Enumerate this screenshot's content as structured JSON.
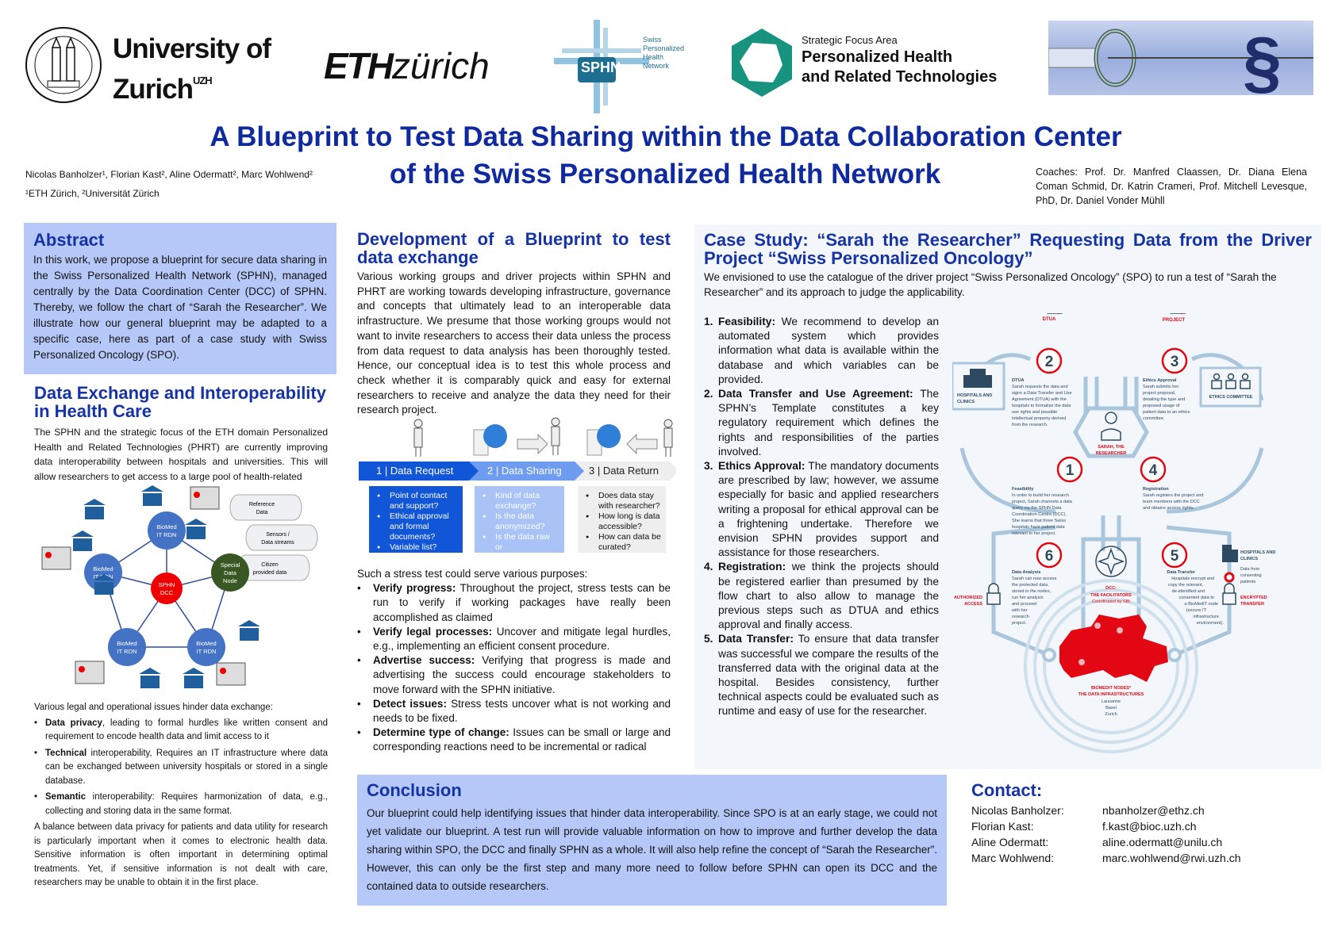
{
  "logos": {
    "uzh": {
      "line1": "University of",
      "line2": "Zurich",
      "sup": "UZH",
      "seal_text": "UNIVERSITAS TURICENSIS"
    },
    "eth": {
      "bold": "ETH",
      "light": "zürich"
    },
    "sphn": {
      "abbr": "SPHN",
      "name_lines": [
        "Swiss",
        "Personalized",
        "Health",
        "Network"
      ]
    },
    "phrt": {
      "small": "Strategic Focus Area",
      "line1": "Personalized Health",
      "line2": "and Related Technologies"
    },
    "banner_icon": "section-sign-with-needle-image"
  },
  "title": {
    "line1": "A Blueprint to Test Data Sharing within the Data Collaboration Center",
    "line2": "of the Swiss Personalized Health Network"
  },
  "authors": {
    "names": "Nicolas Banholzer¹, Florian Kast², Aline Odermatt², Marc Wohlwend²",
    "affiliations": "¹ETH Zürich, ²Universität Zürich"
  },
  "coaches": "Coaches: Prof. Dr. Manfred Claassen, Dr. Diana Elena Coman Schmid, Dr. Katrin Crameri, Prof. Mitchell Levesque, PhD, Dr. Daniel Vonder Mühll",
  "abstract": {
    "heading": "Abstract",
    "text": "In this work, we propose a blueprint for secure data sharing in the Swiss Personalized Health Network (SPHN), managed centrally by the Data Coordination Center (DCC) of SPHN. Thereby, we follow the chart of “Sarah the Researcher”. We illustrate how our general blueprint may be adapted to a specific case, here as part of a case study with Swiss Personalized Oncology (SPO)."
  },
  "exchange": {
    "heading": "Data Exchange and Interoperability in Health Care",
    "intro": "The SPHN and the strategic focus of the ETH domain Personalized Health and Related Technologies (PHRT) are currently improving data interoperability between hospitals and universities. This will allow researchers to get access to a large pool of health-related",
    "network": {
      "center": [
        "SPHN",
        "DCC"
      ],
      "nodes": [
        [
          "BioMed",
          "IT RDN"
        ],
        [
          "BioMed",
          "IT RDN"
        ],
        [
          "BioMed",
          "IT RDN"
        ],
        [
          "BioMed",
          "IT RDN"
        ]
      ],
      "special": [
        "Special",
        "Data",
        "Node"
      ],
      "sources": [
        [
          "Reference",
          "Data"
        ],
        [
          "Sensors /",
          "Data streams"
        ],
        [
          "Citizen",
          "provided data"
        ]
      ],
      "hospital_sign": "HOSPITAL"
    },
    "issues_intro": "Various legal and operational issues hinder data exchange:",
    "issues": [
      {
        "bold": "Data privacy",
        "text": ", leading to formal hurdles like written consent and requirement to encode health data and limit access to it"
      },
      {
        "bold": "Technical",
        "text": " interoperability, Requires an IT infrastructure where data can be exchanged between university hospitals or stored in a single database."
      },
      {
        "bold": "Semantic",
        "text": " interoperability: Requires harmonization of data, e.g., collecting and storing data in the same format."
      }
    ],
    "balance": "A balance between data privacy for patients and data utility for research is particularly important when it comes to electronic health data. Sensitive information is often important in determining optimal treatments. Yet, if sensitive information is not dealt with care, researchers may be unable to obtain it in the first place."
  },
  "development": {
    "heading": "Development of a Blueprint to test data exchange",
    "text": "Various working groups and driver projects within SPHN and PHRT are working towards developing infrastructure, governance and concepts that ultimately lead to an interoperable data infrastructure. We presume that those working groups would not want to invite researchers to access their data unless the process from data request to data analysis has been thoroughly tested. Hence, our conceptual idea is to test this whole process and check whether it is comparably quick and easy for external researchers to receive and analyze the data they need for their research project.",
    "steps": [
      {
        "label": "1 | Data Request",
        "questions": [
          "Point of contact and support?",
          "Ethical approval and formal documents?",
          "Variable list?"
        ]
      },
      {
        "label": "2 | Data Sharing",
        "questions": [
          "Kind of data exchange?",
          "Is the data anonymized?",
          "Is the data raw or preprocessed?"
        ]
      },
      {
        "label": "3 | Data Return",
        "questions": [
          "Does data stay with researcher?",
          "How long is data accessible?",
          "How can data be curated?"
        ]
      }
    ],
    "stress_intro": "Such a stress test could serve various purposes:",
    "purposes": [
      {
        "bold": "Verify progress:",
        "text": " Throughout the project, stress tests can be run to verify if working packages have really been accomplished as claimed"
      },
      {
        "bold": "Verify legal processes:",
        "text": " Uncover and mitigate legal hurdles, e.g., implementing an efficient consent procedure."
      },
      {
        "bold": "Advertise success:",
        "text": " Verifying that progress is made and advertising the success could encourage stakeholders to move forward with the SPHN initiative."
      },
      {
        "bold": "Detect issues:",
        "text": " Stress tests uncover what is not working and needs to be fixed."
      },
      {
        "bold": "Determine type of change:",
        "text": " Issues can be small or large and corresponding reactions need to be incremental or radical"
      }
    ]
  },
  "case_study": {
    "heading": "Case Study: “Sarah the Researcher” Requesting Data from the Driver Project “Swiss Personalized Oncology”",
    "intro": "We envisioned to use the catalogue of the driver project “Swiss Personalized Oncology” (SPO) to run a test of “Sarah the Researcher” and its approach to judge the applicability.",
    "steps": [
      {
        "num": "1.",
        "bold": "Feasibility:",
        "text": " We recommend to develop an automated system which provides information what data is available within the database and which variables can be provided."
      },
      {
        "num": "2.",
        "bold": "Data Transfer and Use Agreement:",
        "text": " The SPHN’s Template constitutes a key regulatory requirement which defines the rights and responsibilities of the parties involved."
      },
      {
        "num": "3.",
        "bold": "Ethics Approval:",
        "text": " The mandatory documents are prescribed by law; however, we assume especially for basic and applied researchers writing a proposal for ethical approval can be a frightening undertake. Therefore we envision SPHN provides support and assistance for those researchers."
      },
      {
        "num": "4.",
        "bold": "Registration:",
        "text": " we think the projects should be registered earlier than presumed by the flow chart to also allow to manage the previous steps such as DTUA and ethics approval and finally access."
      },
      {
        "num": "5.",
        "bold": "Data Transfer:",
        "text": " To ensure that data transfer was successful we compare the results of the transferred data with the original data at the hospital. Besides consistency, further technical aspects could be evaluated such as runtime and easy of use for the researcher."
      }
    ],
    "infographic": {
      "dtua_label": "DTUA",
      "project_label": "PROJECT",
      "hospitals_left": [
        "HOSPITALS AND",
        "CLINICS"
      ],
      "ethics_committee": "ETHICS COMMITTEE",
      "researcher": [
        "SARAH, THE",
        "RESEARCHER"
      ],
      "step2": {
        "num": "2",
        "title": "DTUA",
        "lines": [
          "Sarah requests the data and",
          "signs a Data Transfer and Use",
          "Agreement (DTUA) with the",
          "hospitals to formalize the data",
          "use rights and possible",
          "intellectual property derived",
          "from the research."
        ]
      },
      "step3": {
        "num": "3",
        "title": "Ethics Approval",
        "lines": [
          "Sarah submits her",
          "project proposal,",
          "detailing the type and",
          "proposed usage of",
          "patient data to an ethics",
          "committee."
        ]
      },
      "step1": {
        "num": "1",
        "title": "Feasibility",
        "lines": [
          "In order to build her research",
          "project, Sarah channels a data",
          "query via the SPHN Data",
          "Coordination Centre (DCC).",
          "She learns that three Swiss",
          "hospitals have patient data",
          "relevant to her project."
        ]
      },
      "step4": {
        "num": "4",
        "title": "Registration",
        "lines": [
          "Sarah registers the project and",
          "team members with the DCC",
          "and obtains access rights."
        ]
      },
      "step6": {
        "num": "6",
        "title": "Data Analysis",
        "lines": [
          "Sarah can now access",
          "the protected data,",
          "stored in the nodes,",
          "run her analysis",
          "and proceed",
          "with her",
          "research",
          "project."
        ]
      },
      "step5": {
        "num": "5",
        "title": "Data Transfer",
        "lines": [
          "Hospitals encrypt and",
          "copy the relevant,",
          "de-identified and",
          "consented data to",
          "a BioMedIT node",
          "(secure IT",
          "infrastructure",
          "environment)."
        ]
      },
      "authorized_access": [
        "AUTHORIZED",
        "ACCESS"
      ],
      "hospitals_right": [
        "HOSPITALS AND",
        "CLINICS"
      ],
      "data_from": [
        "Data from",
        "consenting",
        "patients"
      ],
      "encrypted_transfer": [
        "ENCRYPTED",
        "TRANSFER"
      ],
      "dcc": [
        "DCC:",
        "THE FACILITATORS",
        "Coordinated by SIB"
      ],
      "biomedit": [
        "BIOMEDIT NODES*",
        "THE DATA INFRASTRUCTURES"
      ],
      "cities": [
        "Lausanne",
        "Basel",
        "Zurich"
      ],
      "accent": "#e30613",
      "line_color": "#a9c6dd"
    }
  },
  "conclusion": {
    "heading": "Conclusion",
    "text": "Our blueprint could help identifying issues that hinder data interoperability. Since SPO is at an early stage, we could not yet validate our blueprint. A test run will provide valuable information on how to improve and further develop the data sharing within SPO, the DCC and finally SPHN as a whole. It will also help refine the concept of “Sarah the Researcher”. However, this can only be the first step and many more need to follow before SPHN can open its DCC and the contained data to outside researchers."
  },
  "contact": {
    "heading": "Contact:",
    "people": [
      {
        "name": "Nicolas Banholzer:",
        "email": "nbanholzer@ethz.ch"
      },
      {
        "name": "Florian Kast:",
        "email": "f.kast@bioc.uzh.ch"
      },
      {
        "name": "Aline Odermatt:",
        "email": "aline.odermatt@unilu.ch"
      },
      {
        "name": "Marc Wohlwend:",
        "email": "marc.wohlwend@rwi.uzh.ch"
      }
    ]
  },
  "colors": {
    "heading": "#1633a6",
    "title": "#0f2a9e",
    "box": "#b6c8f8",
    "panel": "#f3f7fc",
    "step1": "#1256d8",
    "step2": "#6e9cf0",
    "step3": "#eeeeee"
  }
}
